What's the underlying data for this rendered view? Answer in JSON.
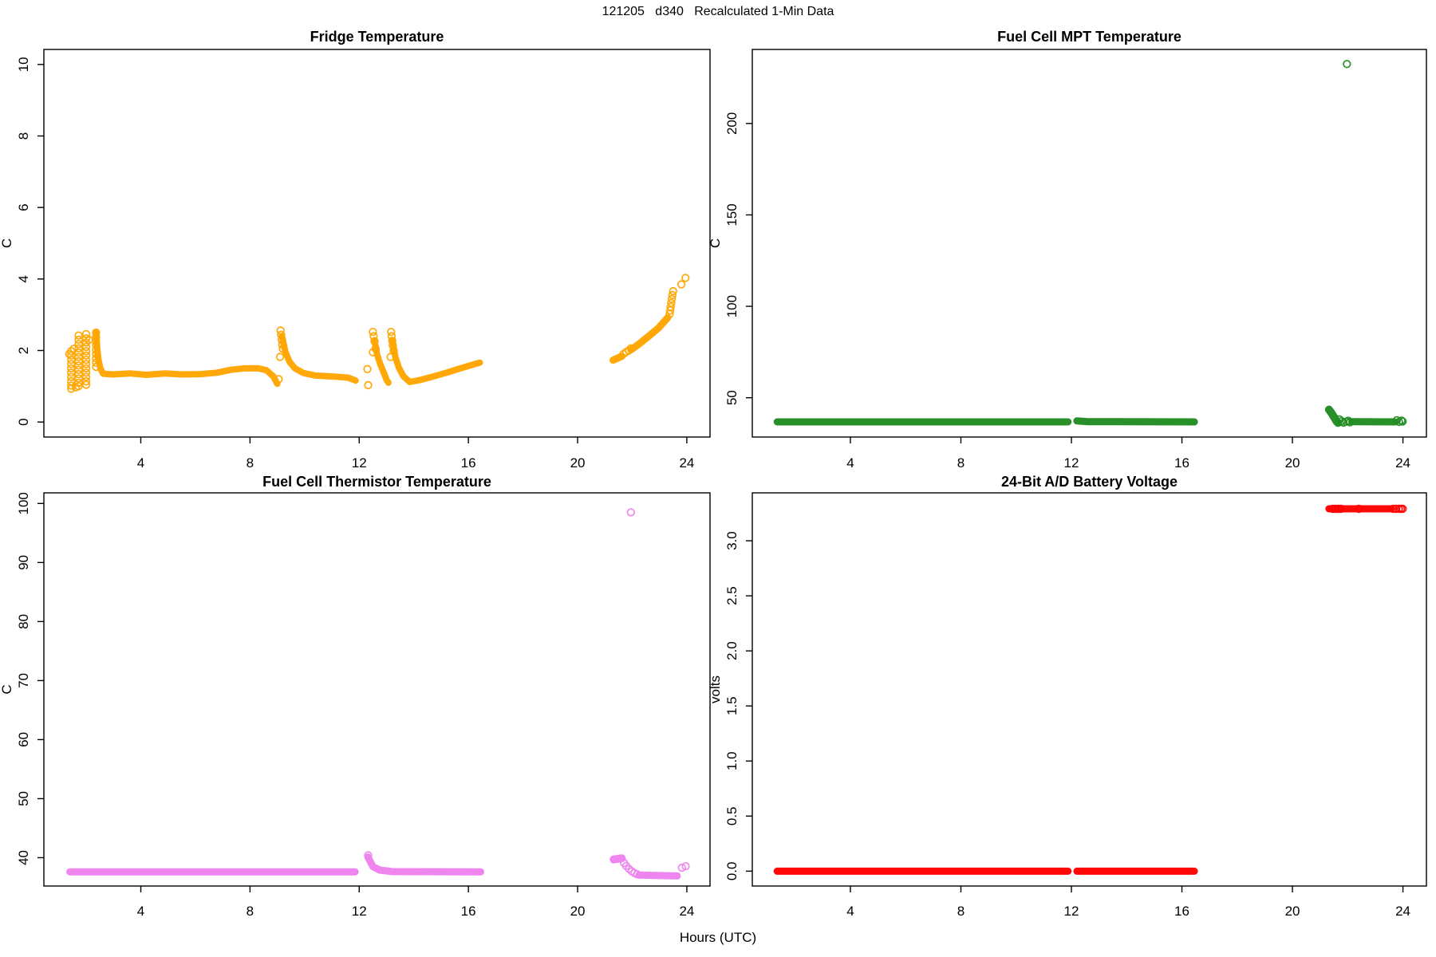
{
  "figure": {
    "title": "121205   d340   Recalculated 1-Min Data",
    "xlabel": "Hours (UTC)",
    "background": "#ffffff",
    "text_color": "#000000",
    "frame_color": "#000000"
  },
  "chart_data": [
    {
      "type": "scatter",
      "position": "top-left",
      "title": "Fridge Temperature",
      "ylabel": "C",
      "marker": "open-circle",
      "color": "#FFA500",
      "grid": false,
      "xlim": [
        0.45,
        24.85
      ],
      "ylim": [
        -0.42,
        10.42
      ],
      "xticks": [
        4,
        8,
        12,
        16,
        20,
        24
      ],
      "yticks": [
        0,
        2,
        4,
        6,
        8,
        10
      ],
      "ytick_labels": [
        "0",
        "2",
        "4",
        "6",
        "8",
        "10"
      ],
      "dense_runs": [
        {
          "w": 8,
          "pts": [
            [
              2.36,
              2.5
            ],
            [
              2.4,
              2.1
            ],
            [
              2.45,
              1.75
            ],
            [
              2.52,
              1.5
            ],
            [
              2.62,
              1.35
            ],
            [
              3.0,
              1.33
            ],
            [
              3.6,
              1.36
            ],
            [
              4.2,
              1.32
            ],
            [
              4.9,
              1.36
            ],
            [
              5.5,
              1.33
            ],
            [
              6.2,
              1.34
            ],
            [
              6.8,
              1.38
            ],
            [
              7.3,
              1.46
            ],
            [
              7.8,
              1.5
            ],
            [
              8.3,
              1.5
            ],
            [
              8.6,
              1.45
            ],
            [
              8.85,
              1.28
            ],
            [
              9.0,
              1.07
            ]
          ]
        },
        {
          "w": 8,
          "pts": [
            [
              9.17,
              2.4
            ],
            [
              9.3,
              1.95
            ],
            [
              9.45,
              1.68
            ],
            [
              9.65,
              1.5
            ],
            [
              9.95,
              1.37
            ],
            [
              10.4,
              1.3
            ],
            [
              11.1,
              1.27
            ],
            [
              11.6,
              1.24
            ],
            [
              11.87,
              1.16
            ]
          ]
        },
        {
          "w": 8,
          "pts": [
            [
              12.56,
              2.28
            ],
            [
              12.66,
              1.88
            ],
            [
              12.78,
              1.6
            ],
            [
              12.9,
              1.38
            ],
            [
              13.0,
              1.18
            ],
            [
              13.07,
              1.1
            ]
          ]
        },
        {
          "w": 8,
          "pts": [
            [
              13.22,
              2.28
            ],
            [
              13.32,
              1.83
            ],
            [
              13.45,
              1.52
            ],
            [
              13.62,
              1.28
            ],
            [
              13.85,
              1.12
            ],
            [
              14.2,
              1.17
            ],
            [
              14.7,
              1.27
            ],
            [
              15.2,
              1.38
            ],
            [
              15.7,
              1.5
            ],
            [
              16.15,
              1.6
            ],
            [
              16.42,
              1.66
            ]
          ]
        },
        {
          "w": 9,
          "pts": [
            [
              21.3,
              1.73
            ],
            [
              21.5,
              1.8
            ],
            [
              21.62,
              1.84
            ]
          ]
        },
        {
          "w": 9,
          "pts": [
            [
              21.95,
              2.02
            ],
            [
              22.25,
              2.18
            ],
            [
              22.6,
              2.4
            ],
            [
              22.95,
              2.62
            ],
            [
              23.3,
              2.92
            ]
          ]
        }
      ],
      "points": [
        [
          1.45,
          1.98
        ],
        [
          1.45,
          1.86
        ],
        [
          1.45,
          1.74
        ],
        [
          1.45,
          1.62
        ],
        [
          1.45,
          1.5
        ],
        [
          1.45,
          1.38
        ],
        [
          1.45,
          1.26
        ],
        [
          1.45,
          1.14
        ],
        [
          1.45,
          1.02
        ],
        [
          1.45,
          0.93
        ],
        [
          1.38,
          1.9
        ],
        [
          1.62,
          0.97
        ],
        [
          1.72,
          2.42
        ],
        [
          1.72,
          2.3
        ],
        [
          1.72,
          2.18
        ],
        [
          1.72,
          2.06
        ],
        [
          1.72,
          1.94
        ],
        [
          1.72,
          1.82
        ],
        [
          1.72,
          1.7
        ],
        [
          1.72,
          1.58
        ],
        [
          1.72,
          1.46
        ],
        [
          1.72,
          1.34
        ],
        [
          1.72,
          1.22
        ],
        [
          1.72,
          1.1
        ],
        [
          1.72,
          1.0
        ],
        [
          1.55,
          2.05
        ],
        [
          2.0,
          2.46
        ],
        [
          2.0,
          2.34
        ],
        [
          2.0,
          2.22
        ],
        [
          2.0,
          2.1
        ],
        [
          2.0,
          1.98
        ],
        [
          2.0,
          1.86
        ],
        [
          2.0,
          1.74
        ],
        [
          2.0,
          1.62
        ],
        [
          2.0,
          1.5
        ],
        [
          2.0,
          1.38
        ],
        [
          2.0,
          1.26
        ],
        [
          2.0,
          1.14
        ],
        [
          2.0,
          1.04
        ],
        [
          2.1,
          2.3
        ],
        [
          2.36,
          2.5
        ],
        [
          2.36,
          2.38
        ],
        [
          2.36,
          2.26
        ],
        [
          2.36,
          2.14
        ],
        [
          2.36,
          2.02
        ],
        [
          2.36,
          1.9
        ],
        [
          2.36,
          1.78
        ],
        [
          2.36,
          1.66
        ],
        [
          2.36,
          1.54
        ],
        [
          9.12,
          2.56
        ],
        [
          9.14,
          2.44
        ],
        [
          9.16,
          2.3
        ],
        [
          9.18,
          2.16
        ],
        [
          9.2,
          2.05
        ],
        [
          9.1,
          1.82
        ],
        [
          9.05,
          1.2
        ],
        [
          12.3,
          1.48
        ],
        [
          12.33,
          1.03
        ],
        [
          12.5,
          2.52
        ],
        [
          12.53,
          2.4
        ],
        [
          12.56,
          2.26
        ],
        [
          12.6,
          2.05
        ],
        [
          12.5,
          1.95
        ],
        [
          13.17,
          2.52
        ],
        [
          13.19,
          2.4
        ],
        [
          13.21,
          2.27
        ],
        [
          13.23,
          2.14
        ],
        [
          13.26,
          2.0
        ],
        [
          13.15,
          1.82
        ],
        [
          21.68,
          1.9
        ],
        [
          21.78,
          1.96
        ],
        [
          21.88,
          2.0
        ],
        [
          21.95,
          2.06
        ],
        [
          23.37,
          3.02
        ],
        [
          23.39,
          3.12
        ],
        [
          23.41,
          3.22
        ],
        [
          23.43,
          3.33
        ],
        [
          23.45,
          3.44
        ],
        [
          23.47,
          3.55
        ],
        [
          23.5,
          3.66
        ],
        [
          23.8,
          3.85
        ],
        [
          23.95,
          4.03
        ]
      ]
    },
    {
      "type": "scatter",
      "position": "top-right",
      "title": "Fuel Cell MPT Temperature",
      "ylabel": "C",
      "marker": "open-circle",
      "color": "#228B22",
      "grid": false,
      "xlim": [
        0.45,
        24.85
      ],
      "ylim": [
        28.5,
        240.5
      ],
      "xticks": [
        4,
        8,
        12,
        16,
        20,
        24
      ],
      "yticks": [
        50,
        100,
        150,
        200
      ],
      "ytick_labels": [
        "50",
        "100",
        "150",
        "200"
      ],
      "dense_runs": [
        {
          "w": 9,
          "pts": [
            [
              1.35,
              36.8
            ],
            [
              11.88,
              36.8
            ]
          ]
        },
        {
          "w": 9,
          "pts": [
            [
              12.2,
              37.3
            ],
            [
              12.6,
              36.9
            ],
            [
              16.45,
              36.8
            ]
          ]
        },
        {
          "w": 10,
          "pts": [
            [
              21.32,
              43.5
            ],
            [
              21.42,
              41.5
            ],
            [
              21.52,
              39.0
            ],
            [
              21.6,
              37.0
            ],
            [
              21.65,
              36.2
            ]
          ]
        },
        {
          "w": 9,
          "pts": [
            [
              22.15,
              36.9
            ],
            [
              23.7,
              36.8
            ]
          ]
        }
      ],
      "points": [
        [
          21.7,
          38.2
        ],
        [
          21.78,
          37.2
        ],
        [
          21.85,
          36.4
        ],
        [
          21.95,
          36.9
        ],
        [
          22.02,
          37.4
        ],
        [
          22.08,
          36.6
        ],
        [
          23.78,
          37.7
        ],
        [
          23.86,
          36.8
        ],
        [
          23.95,
          37.5
        ],
        [
          23.99,
          37.0
        ],
        [
          21.97,
          232.5
        ]
      ]
    },
    {
      "type": "scatter",
      "position": "bottom-left",
      "title": "Fuel Cell Thermistor Temperature",
      "ylabel": "C",
      "marker": "open-circle",
      "color": "#EE82EE",
      "grid": false,
      "xlim": [
        0.45,
        24.85
      ],
      "ylim": [
        35.2,
        101.8
      ],
      "xticks": [
        4,
        8,
        12,
        16,
        20,
        24
      ],
      "yticks": [
        40,
        50,
        60,
        70,
        80,
        90,
        100
      ],
      "ytick_labels": [
        "40",
        "50",
        "60",
        "70",
        "80",
        "90",
        "100"
      ],
      "dense_runs": [
        {
          "w": 9,
          "pts": [
            [
              1.4,
              37.6
            ],
            [
              11.85,
              37.6
            ]
          ]
        },
        {
          "w": 9,
          "pts": [
            [
              12.32,
              40.1
            ],
            [
              12.5,
              38.5
            ],
            [
              12.75,
              37.9
            ],
            [
              13.2,
              37.65
            ],
            [
              16.45,
              37.6
            ]
          ]
        },
        {
          "w": 10,
          "pts": [
            [
              21.32,
              39.7
            ],
            [
              21.62,
              39.9
            ]
          ]
        },
        {
          "w": 9,
          "pts": [
            [
              22.25,
              37.05
            ],
            [
              23.65,
              36.9
            ]
          ]
        }
      ],
      "points": [
        [
          12.33,
          40.4
        ],
        [
          21.7,
          39.1
        ],
        [
          21.78,
          38.6
        ],
        [
          21.88,
          38.1
        ],
        [
          21.98,
          37.7
        ],
        [
          22.08,
          37.4
        ],
        [
          22.18,
          37.2
        ],
        [
          23.82,
          38.3
        ],
        [
          23.96,
          38.55
        ],
        [
          21.95,
          98.5
        ]
      ]
    },
    {
      "type": "scatter",
      "position": "bottom-right",
      "title": "24-Bit A/D Battery Voltage",
      "ylabel": "volts",
      "marker": "open-circle",
      "color": "#FF0000",
      "grid": false,
      "xlim": [
        0.45,
        24.85
      ],
      "ylim": [
        -0.135,
        3.435
      ],
      "xticks": [
        4,
        8,
        12,
        16,
        20,
        24
      ],
      "yticks": [
        0.0,
        0.5,
        1.0,
        1.5,
        2.0,
        2.5,
        3.0
      ],
      "ytick_labels": [
        "0.0",
        "0.5",
        "1.0",
        "1.5",
        "2.0",
        "2.5",
        "3.0"
      ],
      "dense_runs": [
        {
          "w": 9,
          "pts": [
            [
              1.35,
              0.0
            ],
            [
              11.88,
              0.0
            ]
          ]
        },
        {
          "w": 9,
          "pts": [
            [
              12.2,
              0.0
            ],
            [
              16.45,
              0.0
            ]
          ]
        },
        {
          "w": 9,
          "pts": [
            [
              21.32,
              3.29
            ],
            [
              23.58,
              3.29
            ]
          ]
        }
      ],
      "points": [
        [
          21.45,
          3.29
        ],
        [
          21.55,
          3.29
        ],
        [
          21.66,
          3.29
        ],
        [
          21.76,
          3.29
        ],
        [
          22.4,
          3.29
        ],
        [
          23.65,
          3.29
        ],
        [
          23.75,
          3.29
        ],
        [
          23.85,
          3.29
        ],
        [
          23.93,
          3.29
        ],
        [
          23.99,
          3.29
        ]
      ]
    }
  ]
}
